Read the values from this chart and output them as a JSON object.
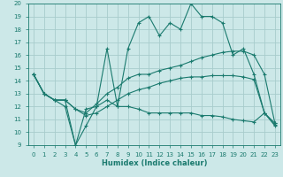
{
  "xlabel": "Humidex (Indice chaleur)",
  "xlim": [
    -0.5,
    23.5
  ],
  "ylim": [
    9,
    20
  ],
  "xticks": [
    0,
    1,
    2,
    3,
    4,
    5,
    6,
    7,
    8,
    9,
    10,
    11,
    12,
    13,
    14,
    15,
    16,
    17,
    18,
    19,
    20,
    21,
    22,
    23
  ],
  "yticks": [
    9,
    10,
    11,
    12,
    13,
    14,
    15,
    16,
    17,
    18,
    19,
    20
  ],
  "bg_color": "#cce8e8",
  "line_color": "#1a7a6e",
  "grid_color": "#a8cccc",
  "lines": [
    {
      "x": [
        0,
        1,
        2,
        3,
        4,
        5,
        6,
        7,
        8,
        9,
        10,
        11,
        12,
        13,
        14,
        15,
        16,
        17,
        18,
        19,
        20,
        21,
        22,
        23
      ],
      "y": [
        14.5,
        13.0,
        12.5,
        12.5,
        9.0,
        10.5,
        12.0,
        16.5,
        12.0,
        16.5,
        18.5,
        19.0,
        17.5,
        18.5,
        18.0,
        20.0,
        19.0,
        19.0,
        18.5,
        16.0,
        16.5,
        14.5,
        11.5,
        10.5
      ],
      "marker": "+"
    },
    {
      "x": [
        0,
        1,
        2,
        3,
        4,
        5,
        6,
        7,
        8,
        9,
        10,
        11,
        12,
        13,
        14,
        15,
        16,
        17,
        18,
        19,
        20,
        21,
        22,
        23
      ],
      "y": [
        14.5,
        13.0,
        12.5,
        12.5,
        11.8,
        11.5,
        12.2,
        13.0,
        13.5,
        14.2,
        14.5,
        14.5,
        14.8,
        15.0,
        15.2,
        15.5,
        15.8,
        16.0,
        16.2,
        16.3,
        16.3,
        16.0,
        14.5,
        10.7
      ],
      "marker": "+"
    },
    {
      "x": [
        0,
        1,
        2,
        3,
        4,
        5,
        6,
        7,
        8,
        9,
        10,
        11,
        12,
        13,
        14,
        15,
        16,
        17,
        18,
        19,
        20,
        21,
        22,
        23
      ],
      "y": [
        14.5,
        13.0,
        12.5,
        12.5,
        11.8,
        11.3,
        11.5,
        12.0,
        12.5,
        13.0,
        13.3,
        13.5,
        13.8,
        14.0,
        14.2,
        14.3,
        14.3,
        14.4,
        14.4,
        14.4,
        14.3,
        14.1,
        11.5,
        10.7
      ],
      "marker": "+"
    },
    {
      "x": [
        0,
        1,
        2,
        3,
        4,
        5,
        6,
        7,
        8,
        9,
        10,
        11,
        12,
        13,
        14,
        15,
        16,
        17,
        18,
        19,
        20,
        21,
        22,
        23
      ],
      "y": [
        14.5,
        13.0,
        12.5,
        12.0,
        9.0,
        11.8,
        12.0,
        12.5,
        12.0,
        12.0,
        11.8,
        11.5,
        11.5,
        11.5,
        11.5,
        11.5,
        11.3,
        11.3,
        11.2,
        11.0,
        10.9,
        10.8,
        11.5,
        10.6
      ],
      "marker": "+"
    }
  ]
}
